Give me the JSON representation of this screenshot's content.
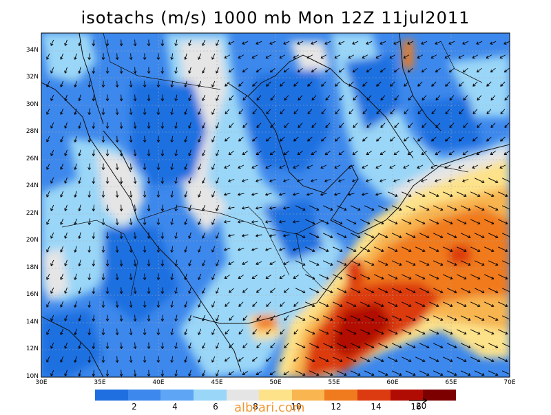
{
  "title": "isotachs (m/s) 1000 mb Mon 12Z 11jul2011",
  "y_ticks": [
    "34N",
    "32N",
    "30N",
    "28N",
    "26N",
    "24N",
    "22N",
    "20N",
    "18N",
    "16N",
    "14N",
    "12N",
    "10N"
  ],
  "x_ticks": [
    "30E",
    "35E",
    "40E",
    "45E",
    "50E",
    "55E",
    "60E",
    "65E",
    "70E"
  ],
  "colorbar": {
    "colors": [
      "#1f6fe0",
      "#3d88ec",
      "#5ea6f5",
      "#9ad6f7",
      "#e5e5e5",
      "#fde28a",
      "#f8b550",
      "#f07a1e",
      "#dc3a10",
      "#b10c04",
      "#7d0000"
    ],
    "labels": [
      "2",
      "4",
      "6",
      "8",
      "10",
      "12",
      "14",
      "16"
    ]
  },
  "reference_vector_label": "20",
  "watermark": "albrari.com"
}
